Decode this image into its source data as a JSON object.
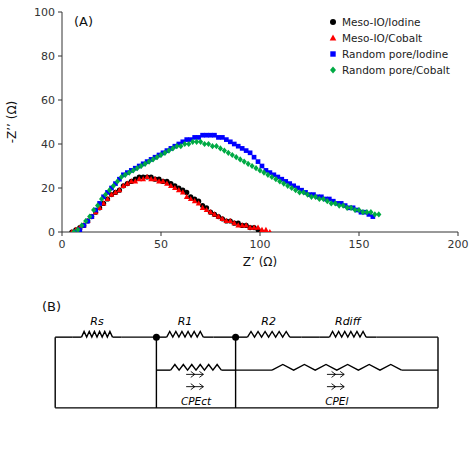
{
  "chart_data": [
    {
      "type": "scatter",
      "title": "(A)",
      "x_label": "Z’ (Ω)",
      "y_label": "-Z’’ (Ω)",
      "xlim": [
        0,
        200
      ],
      "ylim": [
        0,
        100
      ],
      "xticks": [
        0,
        50,
        100,
        150,
        200
      ],
      "yticks": [
        0,
        20,
        40,
        60,
        80,
        100
      ],
      "grid": false,
      "legend": "upper right",
      "series": [
        {
          "name": "Meso-IO/Iodine",
          "color": "black",
          "marker": "circle",
          "x": [
            5,
            7,
            9,
            11,
            13,
            15,
            17,
            19,
            21,
            23,
            25,
            27,
            29,
            31,
            33,
            35,
            37,
            39,
            41,
            43,
            45,
            47,
            49,
            51,
            53,
            55,
            57,
            59,
            61,
            63,
            65,
            67,
            69,
            71,
            73,
            75,
            77,
            79,
            81,
            83,
            85,
            87,
            89,
            91,
            93,
            95,
            97,
            99,
            101
          ],
          "values": [
            0,
            1,
            2,
            3,
            5,
            7,
            9,
            11,
            13,
            15,
            17,
            18,
            19,
            21,
            22,
            23,
            24,
            25,
            25,
            25,
            25,
            24,
            24,
            23,
            23,
            22,
            21,
            20,
            19,
            18,
            16,
            15,
            14,
            12,
            11,
            9,
            8,
            7,
            6,
            5,
            5,
            4,
            4,
            3,
            3,
            2,
            2,
            1,
            0
          ]
        },
        {
          "name": "Meso-IO/Cobalt",
          "color": "red",
          "marker": "triangle",
          "x": [
            5,
            7,
            9,
            11,
            13,
            15,
            17,
            19,
            21,
            23,
            25,
            27,
            29,
            31,
            33,
            35,
            37,
            39,
            41,
            43,
            45,
            47,
            49,
            51,
            53,
            55,
            57,
            59,
            61,
            63,
            65,
            67,
            69,
            71,
            73,
            75,
            77,
            79,
            81,
            83,
            85,
            87,
            89,
            91,
            93,
            95,
            97,
            99,
            101,
            103,
            105
          ],
          "values": [
            0,
            1,
            2,
            3,
            5,
            7,
            9,
            11,
            13,
            15,
            17,
            18,
            19,
            21,
            22,
            23,
            23,
            24,
            24,
            25,
            24,
            24,
            23,
            23,
            22,
            21,
            20,
            19,
            18,
            16,
            15,
            14,
            13,
            11,
            10,
            9,
            8,
            7,
            6,
            5,
            5,
            4,
            3,
            3,
            3,
            2,
            2,
            2,
            1,
            1,
            0
          ]
        },
        {
          "name": "Random pore/Iodine",
          "color": "blue",
          "marker": "square",
          "x": [
            7,
            9,
            11,
            13,
            15,
            17,
            19,
            21,
            23,
            25,
            27,
            29,
            31,
            33,
            35,
            37,
            39,
            41,
            43,
            45,
            47,
            49,
            51,
            53,
            55,
            57,
            59,
            61,
            63,
            65,
            67,
            69,
            71,
            73,
            75,
            77,
            79,
            81,
            83,
            85,
            87,
            89,
            91,
            93,
            95,
            97,
            99,
            101,
            103,
            105,
            107,
            109,
            111,
            113,
            115,
            117,
            119,
            121,
            123,
            125,
            127,
            129,
            131,
            133,
            135,
            137,
            139,
            141,
            143,
            145,
            147,
            149,
            151,
            153,
            155,
            157
          ],
          "values": [
            0,
            1,
            3,
            5,
            7,
            10,
            13,
            16,
            18,
            20,
            22,
            24,
            26,
            27,
            28,
            29,
            30,
            31,
            32,
            33,
            34,
            35,
            36,
            37,
            38,
            39,
            40,
            41,
            42,
            42,
            43,
            43,
            44,
            44,
            44,
            44,
            43,
            43,
            42,
            41,
            40,
            39,
            38,
            37,
            36,
            34,
            32,
            30,
            28,
            27,
            26,
            25,
            24,
            23,
            22,
            21,
            20,
            19,
            18,
            17,
            17,
            16,
            16,
            15,
            15,
            14,
            13,
            13,
            12,
            11,
            11,
            10,
            9,
            9,
            8,
            7
          ]
        },
        {
          "name": "Random pore/Cobalt",
          "color": "#00aa44",
          "marker": "diamond",
          "x": [
            6,
            8,
            10,
            12,
            14,
            16,
            18,
            20,
            22,
            24,
            26,
            28,
            30,
            32,
            34,
            36,
            38,
            40,
            42,
            44,
            46,
            48,
            50,
            52,
            54,
            56,
            58,
            60,
            62,
            64,
            66,
            68,
            70,
            72,
            74,
            76,
            78,
            80,
            82,
            84,
            86,
            88,
            90,
            92,
            94,
            96,
            98,
            100,
            102,
            104,
            106,
            108,
            110,
            112,
            114,
            116,
            118,
            120,
            122,
            124,
            126,
            128,
            130,
            132,
            134,
            136,
            138,
            140,
            142,
            144,
            146,
            148,
            150,
            152,
            154,
            156,
            158,
            160
          ],
          "values": [
            0,
            1,
            3,
            5,
            7,
            10,
            12,
            15,
            17,
            19,
            21,
            23,
            25,
            26,
            27,
            28,
            29,
            30,
            31,
            32,
            33,
            34,
            35,
            36,
            37,
            38,
            39,
            39,
            40,
            40,
            41,
            41,
            41,
            40,
            40,
            39,
            39,
            38,
            37,
            36,
            35,
            34,
            33,
            32,
            31,
            30,
            29,
            28,
            27,
            26,
            25,
            24,
            23,
            22,
            21,
            20,
            19,
            18,
            18,
            17,
            16,
            16,
            15,
            15,
            14,
            13,
            13,
            12,
            12,
            11,
            11,
            10,
            10,
            9,
            9,
            9,
            8,
            8
          ]
        }
      ]
    },
    {
      "type": "circuit",
      "title": "(B)",
      "annotations": [
        "Rs",
        "R1",
        "R2",
        "Rdiff",
        "CPEct",
        "CPEl"
      ]
    }
  ]
}
